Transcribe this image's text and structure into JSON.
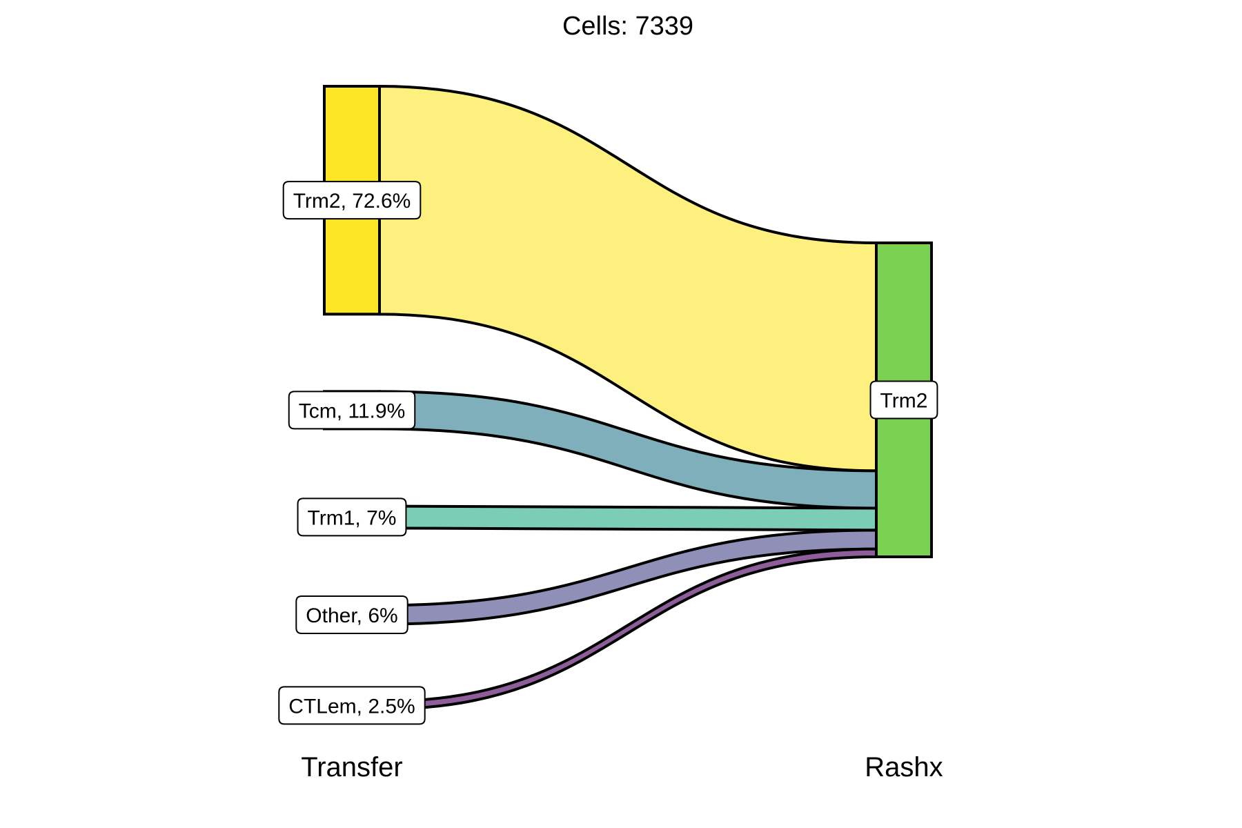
{
  "title": "Cells:  7339",
  "axes": {
    "left": "Transfer",
    "right": "Rashx"
  },
  "chart_data": {
    "type": "alluvial",
    "title": "Cells:  7339",
    "total_cells": 7339,
    "axes": [
      "Transfer",
      "Rashx"
    ],
    "source_categories": [
      {
        "label": "Trm2, 72.6%",
        "name": "Trm2",
        "percent": 72.6,
        "color": "#FDE725"
      },
      {
        "label": "Tcm, 11.9%",
        "name": "Tcm",
        "percent": 11.9,
        "color": "#6AA0AF"
      },
      {
        "label": "Trm1, 7%",
        "name": "Trm1",
        "percent": 7,
        "color": "#6CC8AE"
      },
      {
        "label": "Other, 6%",
        "name": "Other",
        "percent": 6,
        "color": "#7F7FB0"
      },
      {
        "label": "CTLem, 2.5%",
        "name": "CTLem",
        "percent": 2.5,
        "color": "#7C4C8A"
      }
    ],
    "target_categories": [
      {
        "label": "Trm2",
        "name": "Trm2",
        "percent": 100,
        "color": "#7AD151"
      }
    ],
    "flows": [
      {
        "from": "Trm2",
        "to": "Trm2",
        "percent": 72.6,
        "color": "#FDF07F"
      },
      {
        "from": "Tcm",
        "to": "Trm2",
        "percent": 11.9,
        "color": "#80AFBC"
      },
      {
        "from": "Trm1",
        "to": "Trm2",
        "percent": 7,
        "color": "#7BCDB6"
      },
      {
        "from": "Other",
        "to": "Trm2",
        "percent": 6,
        "color": "#8F8FB7"
      },
      {
        "from": "CTLem",
        "to": "Trm2",
        "percent": 2.5,
        "color": "#8D5E99"
      }
    ]
  }
}
